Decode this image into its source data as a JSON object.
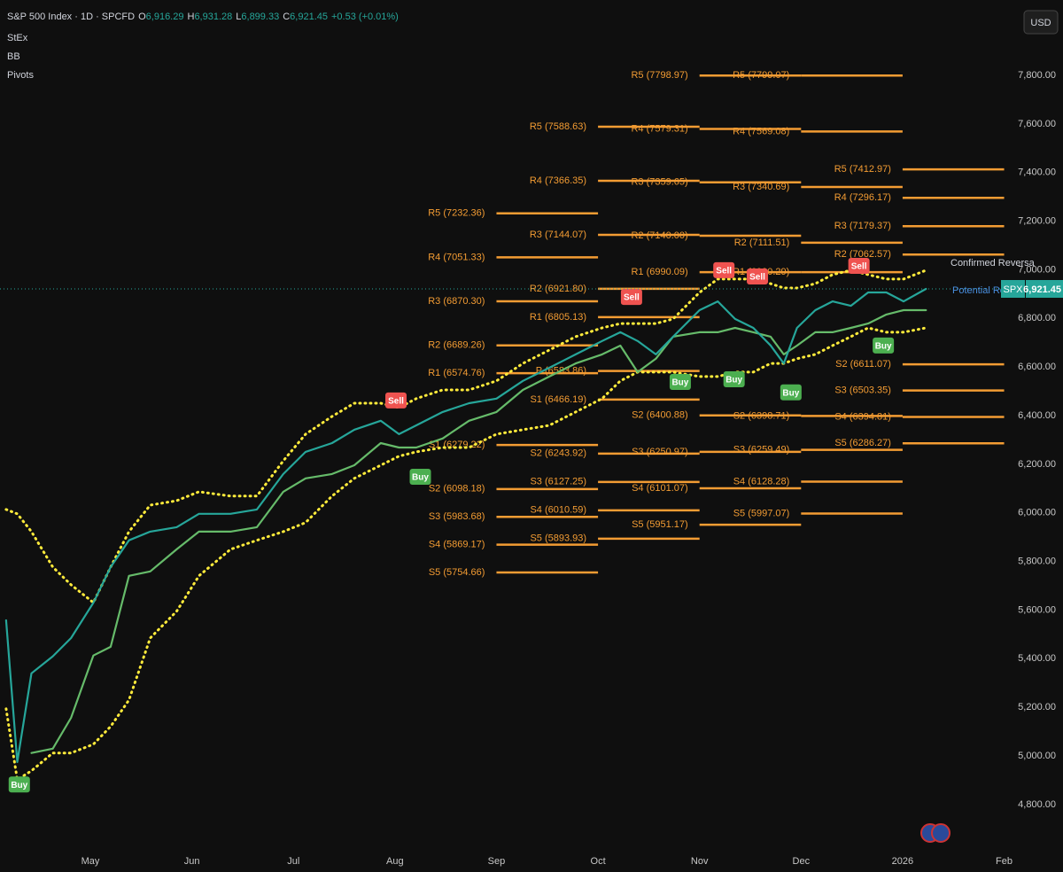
{
  "chart_data": {
    "type": "line",
    "title": "S&P 500 Index · 1D · SPCFD",
    "ohlc": [
      {
        "name": "O",
        "label": "6,916.29"
      },
      {
        "name": "H",
        "label": "6,931.28"
      },
      {
        "name": "L",
        "label": "6,899.33"
      },
      {
        "name": "C",
        "label": "6,921.45"
      }
    ],
    "change": "+0.53 (+0.01%)",
    "indicators": [
      "StEx",
      "BB",
      "Pivots"
    ],
    "currency": "USD",
    "symbol": "SPX",
    "last": {
      "value": 6921.45,
      "label": "6,921.45"
    },
    "annotations": [
      "Confirmed Reversa",
      "Potential Rev"
    ],
    "xlim": [
      4.11,
      14.1
    ],
    "xticks": [
      {
        "value": 5,
        "label": "May"
      },
      {
        "value": 6,
        "label": "Jun"
      },
      {
        "value": 7,
        "label": "Jul"
      },
      {
        "value": 8,
        "label": "Aug"
      },
      {
        "value": 9,
        "label": "Sep"
      },
      {
        "value": 10,
        "label": "Oct"
      },
      {
        "value": 11,
        "label": "Nov"
      },
      {
        "value": 12,
        "label": "Dec"
      },
      {
        "value": 13,
        "label": "2026"
      },
      {
        "value": 14,
        "label": "Feb"
      }
    ],
    "ylim": [
      4610,
      8110
    ],
    "yticks": [
      {
        "value": 4800,
        "label": "4,800.00"
      },
      {
        "value": 5000,
        "label": "5,000.00"
      },
      {
        "value": 5200,
        "label": "5,200.00"
      },
      {
        "value": 5400,
        "label": "5,400.00"
      },
      {
        "value": 5600,
        "label": "5,600.00"
      },
      {
        "value": 5800,
        "label": "5,800.00"
      },
      {
        "value": 6000,
        "label": "6,000.00"
      },
      {
        "value": 6200,
        "label": "6,200.00"
      },
      {
        "value": 6400,
        "label": "6,400.00"
      },
      {
        "value": 6600,
        "label": "6,600.00"
      },
      {
        "value": 6800,
        "label": "6,800.00"
      },
      {
        "value": 7000,
        "label": "7,000.00"
      },
      {
        "value": 7200,
        "label": "7,200.00"
      },
      {
        "value": 7400,
        "label": "7,400.00"
      },
      {
        "value": 7600,
        "label": "7,600.00"
      },
      {
        "value": 7800,
        "label": "7,800.00"
      }
    ],
    "grid": false,
    "x": [
      4.17,
      4.28,
      4.42,
      4.63,
      4.81,
      5.03,
      5.2,
      5.38,
      5.59,
      5.85,
      6.07,
      6.38,
      6.64,
      6.9,
      7.12,
      7.38,
      7.6,
      7.86,
      8.04,
      8.21,
      8.47,
      8.73,
      9.0,
      9.26,
      9.52,
      9.78,
      10.04,
      10.22,
      10.39,
      10.57,
      10.74,
      11.0,
      11.18,
      11.35,
      11.53,
      11.7,
      11.83,
      11.96,
      12.14,
      12.31,
      12.49,
      12.66,
      12.84,
      13.01,
      13.23
    ],
    "series": [
      {
        "color": "#ffeb3b",
        "style": "dots",
        "values": [
          6014,
          5996,
          5923,
          5777,
          5704,
          5631,
          5777,
          5923,
          6032,
          6050,
          6087,
          6069,
          6069,
          6214,
          6324,
          6397,
          6451,
          6451,
          6433,
          6470,
          6506,
          6506,
          6543,
          6615,
          6670,
          6725,
          6761,
          6779,
          6779,
          6779,
          6798,
          6907,
          6962,
          6962,
          6962,
          6943,
          6925,
          6925,
          6943,
          6980,
          6998,
          6980,
          6962,
          6962,
          6998
        ]
      },
      {
        "color": "#ffeb3b",
        "style": "dots",
        "values": [
          5194,
          4902,
          4939,
          5012,
          5012,
          5048,
          5121,
          5230,
          5485,
          5595,
          5741,
          5850,
          5887,
          5923,
          5960,
          6069,
          6142,
          6196,
          6233,
          6251,
          6269,
          6269,
          6324,
          6342,
          6360,
          6415,
          6470,
          6543,
          6579,
          6579,
          6579,
          6561,
          6561,
          6579,
          6579,
          6615,
          6615,
          6634,
          6652,
          6688,
          6725,
          6761,
          6743,
          6743,
          6761
        ]
      },
      {
        "color": "#66bb6a",
        "style": "line",
        "values": [
          null,
          null,
          5012,
          5030,
          5157,
          5413,
          5449,
          5741,
          5759,
          5850,
          5923,
          5923,
          5941,
          6087,
          6142,
          6160,
          6196,
          6287,
          6269,
          6269,
          6306,
          6379,
          6415,
          6506,
          6561,
          6615,
          6652,
          6688,
          6579,
          6634,
          6725,
          6743,
          6743,
          6761,
          6743,
          6725,
          6652,
          6688,
          6743,
          6743,
          6761,
          6779,
          6816,
          6834,
          6834
        ]
      },
      {
        "color": "#26a69a",
        "style": "line",
        "values": [
          5558,
          4975,
          5340,
          5410,
          5485,
          5630,
          5777,
          5887,
          5923,
          5941,
          5996,
          5996,
          6014,
          6160,
          6251,
          6287,
          6342,
          6379,
          6324,
          6360,
          6415,
          6451,
          6470,
          6543,
          6597,
          6652,
          6707,
          6743,
          6707,
          6652,
          6725,
          6834,
          6870,
          6798,
          6761,
          6689,
          6615,
          6761,
          6834,
          6870,
          6852,
          6907,
          6907,
          6870,
          6921.45
        ]
      }
    ],
    "pivot_color": "#f39c33",
    "pivots": [
      {
        "range": [
          9,
          10
        ],
        "levels": [
          {
            "value": 7232.36,
            "label": "R5 (7232.36)"
          },
          {
            "value": 7051.33,
            "label": "R4 (7051.33)"
          },
          {
            "value": 6870.3,
            "label": "R3 (6870.30)"
          },
          {
            "value": 6689.26,
            "label": "R2 (6689.26)"
          },
          {
            "value": 6574.76,
            "label": "R1 (6574.76)"
          },
          {
            "value": 6279.22,
            "label": "S1 (6279.22)"
          },
          {
            "value": 6098.18,
            "label": "S2 (6098.18)"
          },
          {
            "value": 5983.68,
            "label": "S3 (5983.68)"
          },
          {
            "value": 5869.17,
            "label": "S4 (5869.17)"
          },
          {
            "value": 5754.66,
            "label": "S5 (5754.66)"
          }
        ]
      },
      {
        "range": [
          10,
          11
        ],
        "levels": [
          {
            "value": 7588.63,
            "label": "R5 (7588.63)"
          },
          {
            "value": 7366.35,
            "label": "R4 (7366.35)"
          },
          {
            "value": 7144.07,
            "label": "R3 (7144.07)"
          },
          {
            "value": 6921.8,
            "label": "R2 (6921.80)"
          },
          {
            "value": 6805.13,
            "label": "R1 (6805.13)"
          },
          {
            "value": 6583.86,
            "label": "P (6583.86)"
          },
          {
            "value": 6466.19,
            "label": "S1 (6466.19)"
          },
          {
            "value": 6243.92,
            "label": "S2 (6243.92)"
          },
          {
            "value": 6127.25,
            "label": "S3 (6127.25)"
          },
          {
            "value": 6010.59,
            "label": "S4 (6010.59)"
          },
          {
            "value": 5893.93,
            "label": "S5 (5893.93)"
          }
        ]
      },
      {
        "range": [
          11,
          12
        ],
        "levels": [
          {
            "value": 7798.97,
            "label": "R5 (7798.97)"
          },
          {
            "value": 7579.31,
            "label": "R4 (7579.31)"
          },
          {
            "value": 7359.65,
            "label": "R3 (7359.65)"
          },
          {
            "value": 7140.0,
            "label": "R2 (7140.00)"
          },
          {
            "value": 6990.09,
            "label": "R1 (6990.09)"
          },
          {
            "value": 6400.88,
            "label": "S2 (6400.88)"
          },
          {
            "value": 6250.97,
            "label": "S3 (6250.97)"
          },
          {
            "value": 6101.07,
            "label": "S4 (6101.07)"
          },
          {
            "value": 5951.17,
            "label": "S5 (5951.17)"
          }
        ]
      },
      {
        "range": [
          12,
          13
        ],
        "levels": [
          {
            "value": 7799.07,
            "label": "R5 (7799.07)"
          },
          {
            "value": 7569.08,
            "label": "R4 (7569.08)"
          },
          {
            "value": 7340.69,
            "label": "R3 (7340.69)"
          },
          {
            "value": 7111.51,
            "label": "R2 (7111.51)"
          },
          {
            "value": 6990.29,
            "label": "R1 (6990.29)"
          },
          {
            "value": 6398.71,
            "label": "S2 (6398.71)"
          },
          {
            "value": 6259.49,
            "label": "S3 (6259.49)"
          },
          {
            "value": 6128.28,
            "label": "S4 (6128.28)"
          },
          {
            "value": 5997.07,
            "label": "S5 (5997.07)"
          }
        ]
      },
      {
        "range": [
          13,
          14
        ],
        "levels": [
          {
            "value": 7412.97,
            "label": "R5 (7412.97)"
          },
          {
            "value": 7296.17,
            "label": "R4 (7296.17)"
          },
          {
            "value": 7179.37,
            "label": "R3 (7179.37)"
          },
          {
            "value": 7062.57,
            "label": "R2 (7062.57)"
          },
          {
            "value": 6611.07,
            "label": "S2 (6611.07)"
          },
          {
            "value": 6503.35,
            "label": "S3 (6503.35)"
          },
          {
            "value": 6394.81,
            "label": "S4 (6394.81)"
          },
          {
            "value": 6286.27,
            "label": "S5 (6286.27)"
          }
        ]
      }
    ],
    "signals": [
      {
        "x": 4.3,
        "price": 4930,
        "label": "Buy"
      },
      {
        "x": 8.01,
        "price": 6415,
        "label": "Sell"
      },
      {
        "x": 8.25,
        "price": 6196,
        "label": "Buy"
      },
      {
        "x": 10.33,
        "price": 6841,
        "label": "Sell"
      },
      {
        "x": 10.81,
        "price": 6586,
        "label": "Buy"
      },
      {
        "x": 11.24,
        "price": 6951,
        "label": "Sell"
      },
      {
        "x": 11.34,
        "price": 6597,
        "label": "Buy"
      },
      {
        "x": 11.57,
        "price": 6925,
        "label": "Sell"
      },
      {
        "x": 11.9,
        "price": 6543,
        "label": "Buy"
      },
      {
        "x": 12.57,
        "price": 6969,
        "label": "Sell"
      },
      {
        "x": 12.81,
        "price": 6736,
        "label": "Buy"
      }
    ]
  }
}
